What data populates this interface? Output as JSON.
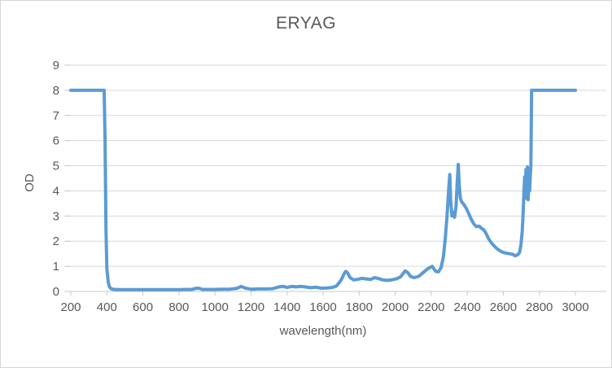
{
  "chart_data": {
    "type": "line",
    "title": "ERYAG",
    "xlabel": "wavelength(nm)",
    "ylabel": "OD",
    "xlim": [
      200,
      3000
    ],
    "ylim": [
      0,
      9
    ],
    "x_tick_step": 200,
    "y_tick_step": 1,
    "grid": "horizontal",
    "legend": "none",
    "colors": {
      "line": "#5B9BD5",
      "gridline": "#D9D9D9",
      "axis_line": "#C8C8C8",
      "tick_text": "#595959",
      "title_text": "#595959",
      "background": "#FFFFFF"
    },
    "series": [
      {
        "name": "ERYAG",
        "points": [
          [
            200,
            8
          ],
          [
            385,
            8
          ],
          [
            390,
            6
          ],
          [
            395,
            2.5
          ],
          [
            400,
            0.9
          ],
          [
            408,
            0.35
          ],
          [
            415,
            0.18
          ],
          [
            425,
            0.1
          ],
          [
            440,
            0.08
          ],
          [
            480,
            0.07
          ],
          [
            520,
            0.07
          ],
          [
            560,
            0.07
          ],
          [
            600,
            0.07
          ],
          [
            640,
            0.07
          ],
          [
            680,
            0.07
          ],
          [
            720,
            0.07
          ],
          [
            760,
            0.07
          ],
          [
            800,
            0.07
          ],
          [
            840,
            0.08
          ],
          [
            870,
            0.08
          ],
          [
            900,
            0.13
          ],
          [
            915,
            0.12
          ],
          [
            930,
            0.08
          ],
          [
            960,
            0.08
          ],
          [
            1000,
            0.08
          ],
          [
            1040,
            0.09
          ],
          [
            1080,
            0.09
          ],
          [
            1120,
            0.12
          ],
          [
            1145,
            0.2
          ],
          [
            1170,
            0.13
          ],
          [
            1200,
            0.09
          ],
          [
            1240,
            0.1
          ],
          [
            1280,
            0.1
          ],
          [
            1320,
            0.11
          ],
          [
            1355,
            0.18
          ],
          [
            1380,
            0.2
          ],
          [
            1400,
            0.16
          ],
          [
            1425,
            0.2
          ],
          [
            1450,
            0.18
          ],
          [
            1475,
            0.2
          ],
          [
            1500,
            0.18
          ],
          [
            1530,
            0.15
          ],
          [
            1560,
            0.17
          ],
          [
            1590,
            0.13
          ],
          [
            1620,
            0.14
          ],
          [
            1650,
            0.16
          ],
          [
            1675,
            0.22
          ],
          [
            1700,
            0.45
          ],
          [
            1715,
            0.68
          ],
          [
            1725,
            0.8
          ],
          [
            1735,
            0.75
          ],
          [
            1750,
            0.55
          ],
          [
            1770,
            0.46
          ],
          [
            1790,
            0.48
          ],
          [
            1815,
            0.52
          ],
          [
            1840,
            0.5
          ],
          [
            1865,
            0.48
          ],
          [
            1885,
            0.55
          ],
          [
            1905,
            0.52
          ],
          [
            1930,
            0.46
          ],
          [
            1955,
            0.44
          ],
          [
            1980,
            0.46
          ],
          [
            2005,
            0.5
          ],
          [
            2030,
            0.58
          ],
          [
            2055,
            0.82
          ],
          [
            2070,
            0.75
          ],
          [
            2085,
            0.6
          ],
          [
            2105,
            0.55
          ],
          [
            2130,
            0.6
          ],
          [
            2155,
            0.75
          ],
          [
            2180,
            0.9
          ],
          [
            2205,
            1.0
          ],
          [
            2225,
            0.8
          ],
          [
            2240,
            0.78
          ],
          [
            2255,
            0.95
          ],
          [
            2268,
            1.4
          ],
          [
            2278,
            2.1
          ],
          [
            2288,
            3.0
          ],
          [
            2298,
            4.2
          ],
          [
            2303,
            4.65
          ],
          [
            2308,
            3.6
          ],
          [
            2315,
            3.0
          ],
          [
            2322,
            3.15
          ],
          [
            2330,
            2.95
          ],
          [
            2338,
            3.4
          ],
          [
            2344,
            4.3
          ],
          [
            2350,
            5.05
          ],
          [
            2356,
            4.2
          ],
          [
            2362,
            3.7
          ],
          [
            2370,
            3.55
          ],
          [
            2382,
            3.45
          ],
          [
            2395,
            3.3
          ],
          [
            2408,
            3.1
          ],
          [
            2420,
            2.9
          ],
          [
            2435,
            2.7
          ],
          [
            2450,
            2.58
          ],
          [
            2465,
            2.6
          ],
          [
            2478,
            2.52
          ],
          [
            2492,
            2.45
          ],
          [
            2505,
            2.3
          ],
          [
            2518,
            2.1
          ],
          [
            2532,
            1.95
          ],
          [
            2548,
            1.82
          ],
          [
            2565,
            1.7
          ],
          [
            2582,
            1.62
          ],
          [
            2600,
            1.55
          ],
          [
            2618,
            1.52
          ],
          [
            2636,
            1.5
          ],
          [
            2652,
            1.48
          ],
          [
            2666,
            1.42
          ],
          [
            2680,
            1.46
          ],
          [
            2690,
            1.55
          ],
          [
            2698,
            1.85
          ],
          [
            2705,
            2.4
          ],
          [
            2710,
            3.1
          ],
          [
            2714,
            3.9
          ],
          [
            2718,
            4.55
          ],
          [
            2722,
            3.85
          ],
          [
            2726,
            4.85
          ],
          [
            2730,
            3.7
          ],
          [
            2734,
            4.95
          ],
          [
            2738,
            3.65
          ],
          [
            2742,
            4.5
          ],
          [
            2746,
            4.0
          ],
          [
            2750,
            4.6
          ],
          [
            2753,
            5.0
          ],
          [
            2755,
            6.5
          ],
          [
            2757,
            8
          ],
          [
            3000,
            8
          ]
        ]
      }
    ]
  }
}
